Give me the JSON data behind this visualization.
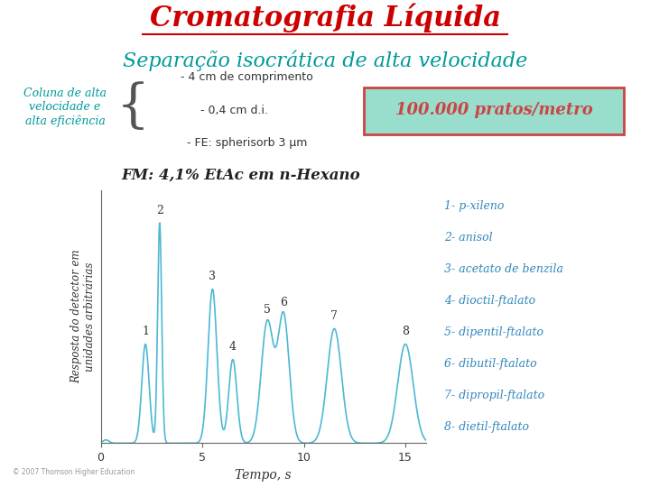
{
  "title": "Cromatografia Líquida",
  "subtitle": "Separação isocrática de alta velocidade",
  "title_color": "#cc0000",
  "subtitle_color": "#009999",
  "bg_color": "#ffffff",
  "col_label": "Coluna de alta\nvelocidade e\nalta eficiência",
  "col_specs": [
    "- 4 cm de comprimento",
    "- 0,4 cm d.i.",
    "- FE: spherisorb 3 μm"
  ],
  "box_text": "100.000 pratos/metro",
  "box_bg": "#99ddcc",
  "box_border": "#cc4444",
  "fm_label": "FM: 4,1% EtAc em n-Hexano",
  "xlabel": "Tempo, s",
  "ylabel": "Resposta do detector em\nunidades arbitrárias",
  "peak_times": [
    2.2,
    2.9,
    5.5,
    6.5,
    8.2,
    9.0,
    11.5,
    15.0
  ],
  "peak_heights": [
    0.45,
    1.0,
    0.7,
    0.38,
    0.55,
    0.58,
    0.52,
    0.45
  ],
  "peak_widths": [
    0.18,
    0.1,
    0.22,
    0.2,
    0.3,
    0.28,
    0.35,
    0.38
  ],
  "line_color": "#4db8d4",
  "xlim": [
    0,
    16
  ],
  "ylim": [
    0,
    1.15
  ],
  "peak_label_positions": [
    [
      2.2,
      0.48,
      "1"
    ],
    [
      2.9,
      1.03,
      "2"
    ],
    [
      5.5,
      0.73,
      "3"
    ],
    [
      6.5,
      0.41,
      "4"
    ],
    [
      8.2,
      0.58,
      "5"
    ],
    [
      9.0,
      0.61,
      "6"
    ],
    [
      11.5,
      0.55,
      "7"
    ],
    [
      15.0,
      0.48,
      "8"
    ]
  ],
  "compounds": [
    "1- p-xileno",
    "2- anisol",
    "3- acetato de benzila",
    "4- dioctil-ftalato",
    "5- dipentil-ftalato",
    "6- dibutil-ftalato",
    "7- dipropil-ftalato",
    "8- dietil-ftalato"
  ],
  "compound_color": "#3388bb",
  "copyright": "© 2007 Thomson Higher Education"
}
